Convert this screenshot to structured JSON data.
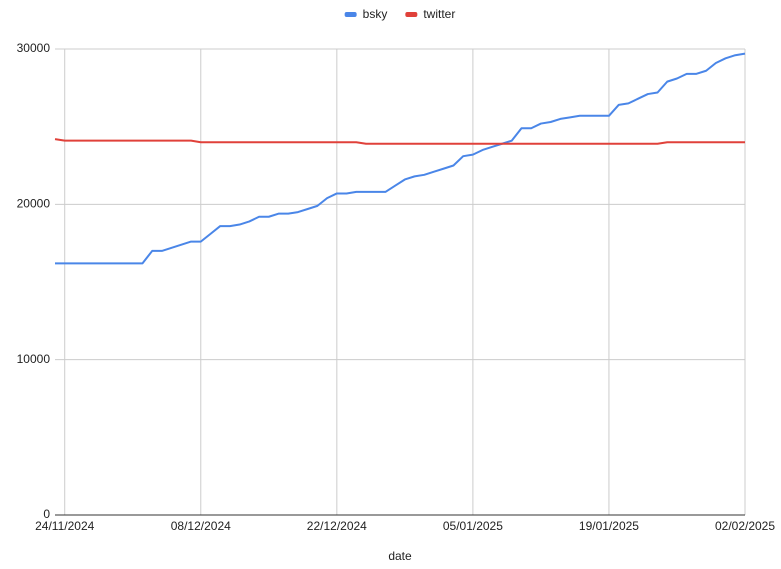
{
  "chart_data": {
    "type": "line",
    "x_label": "date",
    "x": [
      "23/11/2024",
      "24/11/2024",
      "25/11/2024",
      "26/11/2024",
      "27/11/2024",
      "28/11/2024",
      "29/11/2024",
      "30/11/2024",
      "01/12/2024",
      "02/12/2024",
      "03/12/2024",
      "04/12/2024",
      "05/12/2024",
      "06/12/2024",
      "07/12/2024",
      "08/12/2024",
      "09/12/2024",
      "10/12/2024",
      "11/12/2024",
      "12/12/2024",
      "13/12/2024",
      "14/12/2024",
      "15/12/2024",
      "16/12/2024",
      "17/12/2024",
      "18/12/2024",
      "19/12/2024",
      "20/12/2024",
      "21/12/2024",
      "22/12/2024",
      "23/12/2024",
      "24/12/2024",
      "25/12/2024",
      "26/12/2024",
      "27/12/2024",
      "28/12/2024",
      "29/12/2024",
      "30/12/2024",
      "31/12/2024",
      "01/01/2025",
      "02/01/2025",
      "03/01/2025",
      "04/01/2025",
      "05/01/2025",
      "06/01/2025",
      "07/01/2025",
      "08/01/2025",
      "09/01/2025",
      "10/01/2025",
      "11/01/2025",
      "12/01/2025",
      "13/01/2025",
      "14/01/2025",
      "15/01/2025",
      "16/01/2025",
      "17/01/2025",
      "18/01/2025",
      "19/01/2025",
      "20/01/2025",
      "21/01/2025",
      "22/01/2025",
      "23/01/2025",
      "24/01/2025",
      "25/01/2025",
      "26/01/2025",
      "27/01/2025",
      "28/01/2025",
      "29/01/2025",
      "30/01/2025",
      "31/01/2025",
      "01/02/2025",
      "02/02/2025"
    ],
    "series": [
      {
        "name": "bsky",
        "color": "#4a86e8",
        "values": [
          16200,
          16200,
          16200,
          16200,
          16200,
          16200,
          16200,
          16200,
          16200,
          16200,
          17000,
          17000,
          17200,
          17400,
          17600,
          17600,
          18100,
          18600,
          18600,
          18700,
          18900,
          19200,
          19200,
          19400,
          19400,
          19500,
          19700,
          19900,
          20400,
          20700,
          20700,
          20800,
          20800,
          20800,
          20800,
          21200,
          21600,
          21800,
          21900,
          22100,
          22300,
          22500,
          23100,
          23200,
          23500,
          23700,
          23900,
          24100,
          24900,
          24900,
          25200,
          25300,
          25500,
          25600,
          25700,
          25700,
          25700,
          25700,
          26400,
          26500,
          26800,
          27100,
          27200,
          27900,
          28100,
          28400,
          28400,
          28600,
          29100,
          29400,
          29600,
          29700
        ]
      },
      {
        "name": "twitter",
        "color": "#e0413a",
        "values": [
          24200,
          24100,
          24100,
          24100,
          24100,
          24100,
          24100,
          24100,
          24100,
          24100,
          24100,
          24100,
          24100,
          24100,
          24100,
          24000,
          24000,
          24000,
          24000,
          24000,
          24000,
          24000,
          24000,
          24000,
          24000,
          24000,
          24000,
          24000,
          24000,
          24000,
          24000,
          24000,
          23900,
          23900,
          23900,
          23900,
          23900,
          23900,
          23900,
          23900,
          23900,
          23900,
          23900,
          23900,
          23900,
          23900,
          23900,
          23900,
          23900,
          23900,
          23900,
          23900,
          23900,
          23900,
          23900,
          23900,
          23900,
          23900,
          23900,
          23900,
          23900,
          23900,
          23900,
          24000,
          24000,
          24000,
          24000,
          24000,
          24000,
          24000,
          24000,
          24000
        ]
      }
    ],
    "xlim": [
      "23/11/2024",
      "02/02/2025"
    ],
    "xticks": [
      "24/11/2024",
      "08/12/2024",
      "22/12/2024",
      "05/01/2025",
      "19/01/2025",
      "02/02/2025"
    ],
    "ylim": [
      0,
      30000
    ],
    "yticks": [
      0,
      10000,
      20000,
      30000
    ],
    "grid": true,
    "legend": "top"
  }
}
